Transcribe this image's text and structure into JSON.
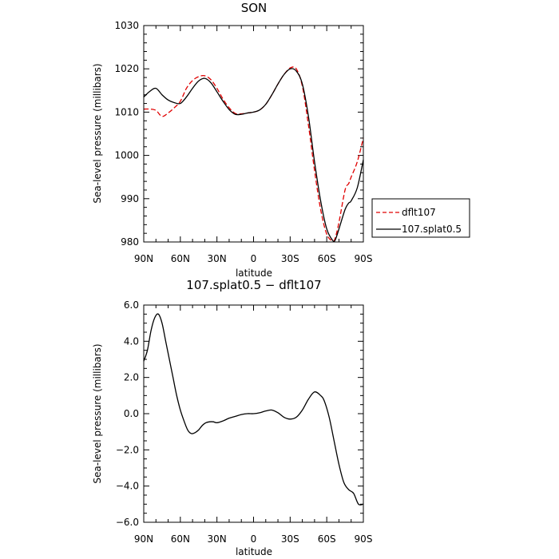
{
  "chart_data": [
    {
      "type": "line",
      "title": "SON",
      "xlabel": "latitude",
      "ylabel": "Sea-level pressure (millibars)",
      "xlim": [
        90,
        -90
      ],
      "ylim": [
        980,
        1030
      ],
      "x_ticks": [
        90,
        60,
        30,
        0,
        -30,
        -60,
        -90
      ],
      "x_tick_labels": [
        "90N",
        "60N",
        "30N",
        "0",
        "30S",
        "60S",
        "90S"
      ],
      "y_ticks": [
        980,
        990,
        1000,
        1010,
        1020,
        1030
      ],
      "y_tick_labels": [
        "980",
        "990",
        "1000",
        "1010",
        "1020",
        "1030"
      ],
      "legend_placement": "right-outside",
      "series": [
        {
          "name": "dflt107",
          "color": "#e00000",
          "dash": "dashed",
          "x": [
            90,
            85,
            80,
            75,
            70,
            65,
            60,
            55,
            50,
            45,
            40,
            35,
            30,
            25,
            20,
            15,
            10,
            5,
            0,
            -5,
            -10,
            -15,
            -20,
            -25,
            -30,
            -35,
            -40,
            -45,
            -50,
            -55,
            -60,
            -65,
            -67,
            -70,
            -75,
            -78,
            -80,
            -85,
            -90
          ],
          "y": [
            1010.7,
            1010.7,
            1010.4,
            1009.0,
            1009.8,
            1011.0,
            1012.5,
            1015.5,
            1017.3,
            1018.2,
            1018.4,
            1017.5,
            1015.5,
            1013.0,
            1011.0,
            1009.7,
            1009.6,
            1009.8,
            1010.0,
            1010.5,
            1011.8,
            1014.0,
            1016.5,
            1018.7,
            1020.2,
            1020.0,
            1016.0,
            1007.0,
            996.5,
            987.5,
            981.8,
            980.2,
            981.0,
            984.5,
            992.0,
            993.5,
            995.0,
            998.5,
            1004.0
          ]
        },
        {
          "name": "107.splat0.5",
          "color": "#000000",
          "dash": "solid",
          "x": [
            90,
            85,
            80,
            75,
            70,
            65,
            60,
            55,
            50,
            45,
            40,
            35,
            30,
            25,
            20,
            15,
            10,
            5,
            0,
            -5,
            -10,
            -15,
            -20,
            -25,
            -30,
            -35,
            -40,
            -45,
            -50,
            -55,
            -60,
            -65,
            -67,
            -70,
            -75,
            -78,
            -80,
            -85,
            -90
          ],
          "y": [
            1013.5,
            1014.8,
            1015.5,
            1014.0,
            1012.8,
            1012.2,
            1012.0,
            1013.5,
            1015.5,
            1017.2,
            1017.8,
            1016.8,
            1014.7,
            1012.5,
            1010.6,
            1009.5,
            1009.5,
            1009.8,
            1010.0,
            1010.5,
            1011.8,
            1014.0,
            1016.5,
            1018.7,
            1020.0,
            1019.5,
            1016.5,
            1009.0,
            998.5,
            989.5,
            983.0,
            980.3,
            980.5,
            983.0,
            987.5,
            989.0,
            989.5,
            992.5,
            999.0
          ]
        }
      ]
    },
    {
      "type": "line",
      "title": "107.splat0.5 − dflt107",
      "xlabel": "latitude",
      "ylabel": "Sea-level pressure (millibars)",
      "xlim": [
        90,
        -90
      ],
      "ylim": [
        -6,
        6
      ],
      "x_ticks": [
        90,
        60,
        30,
        0,
        -30,
        -60,
        -90
      ],
      "x_tick_labels": [
        "90N",
        "60N",
        "30N",
        "0",
        "30S",
        "60S",
        "90S"
      ],
      "y_ticks": [
        -6,
        -4,
        -2,
        0,
        2,
        4,
        6
      ],
      "y_tick_labels": [
        "−6.0",
        "−4.0",
        "−2.0",
        "0.0",
        "2.0",
        "4.0",
        "6.0"
      ],
      "series": [
        {
          "color": "#000000",
          "dash": "solid",
          "x": [
            90,
            87,
            84,
            81,
            78,
            75,
            72,
            69,
            66,
            63,
            60,
            57,
            54,
            51,
            48,
            45,
            42,
            39,
            36,
            33,
            30,
            25,
            20,
            15,
            10,
            5,
            0,
            -5,
            -10,
            -15,
            -20,
            -25,
            -30,
            -35,
            -40,
            -45,
            -50,
            -55,
            -58,
            -62,
            -66,
            -70,
            -74,
            -78,
            -82,
            -86,
            -90
          ],
          "y": [
            2.9,
            3.5,
            4.6,
            5.3,
            5.5,
            5.0,
            4.0,
            3.0,
            2.0,
            1.0,
            0.2,
            -0.4,
            -0.9,
            -1.1,
            -1.05,
            -0.9,
            -0.65,
            -0.5,
            -0.45,
            -0.45,
            -0.5,
            -0.4,
            -0.25,
            -0.15,
            -0.05,
            0.0,
            0.0,
            0.05,
            0.15,
            0.2,
            0.05,
            -0.2,
            -0.3,
            -0.2,
            0.2,
            0.8,
            1.2,
            1.0,
            0.7,
            -0.2,
            -1.5,
            -2.8,
            -3.8,
            -4.2,
            -4.4,
            -5.0,
            -5.0
          ]
        }
      ]
    }
  ]
}
